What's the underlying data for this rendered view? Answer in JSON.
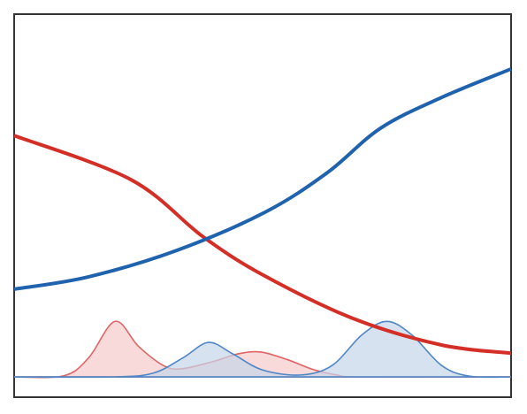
{
  "chart_data": {
    "type": "line",
    "xlim": [
      0,
      1
    ],
    "ylim": [
      -0.053,
      0.947
    ],
    "series": [
      {
        "style": "area",
        "color": "#e06464",
        "fill": "#f5caca",
        "x": [
          0,
          0.1,
          0.15,
          0.203,
          0.25,
          0.3,
          0.336,
          0.4,
          0.45,
          0.496,
          0.55,
          0.6,
          0.65,
          0.7,
          1
        ],
        "values": [
          0,
          0.003,
          0.05,
          0.145,
          0.08,
          0.03,
          0.021,
          0.04,
          0.06,
          0.065,
          0.045,
          0.02,
          0.005,
          0,
          0
        ]
      },
      {
        "style": "area",
        "color": "#4f86c6",
        "fill": "#c6d6ea",
        "x": [
          0,
          0.2,
          0.28,
          0.34,
          0.391,
          0.44,
          0.5,
          0.577,
          0.64,
          0.7,
          0.75,
          0.8,
          0.86,
          0.916,
          1
        ],
        "values": [
          0,
          0,
          0.01,
          0.05,
          0.09,
          0.06,
          0.018,
          0.005,
          0.03,
          0.11,
          0.145,
          0.11,
          0.03,
          0.002,
          0
        ]
      },
      {
        "style": "line",
        "color": "#d42f27",
        "x": [
          0,
          0.235,
          0.381,
          0.505,
          0.683,
          0.861,
          1
        ],
        "values": [
          0.63,
          0.515,
          0.365,
          0.263,
          0.152,
          0.083,
          0.062
        ]
      },
      {
        "style": "line",
        "color": "#1f62ad",
        "x": [
          0,
          0.149,
          0.327,
          0.505,
          0.63,
          0.737,
          0.861,
          1
        ],
        "values": [
          0.229,
          0.261,
          0.33,
          0.43,
          0.533,
          0.649,
          0.73,
          0.804
        ]
      }
    ]
  }
}
